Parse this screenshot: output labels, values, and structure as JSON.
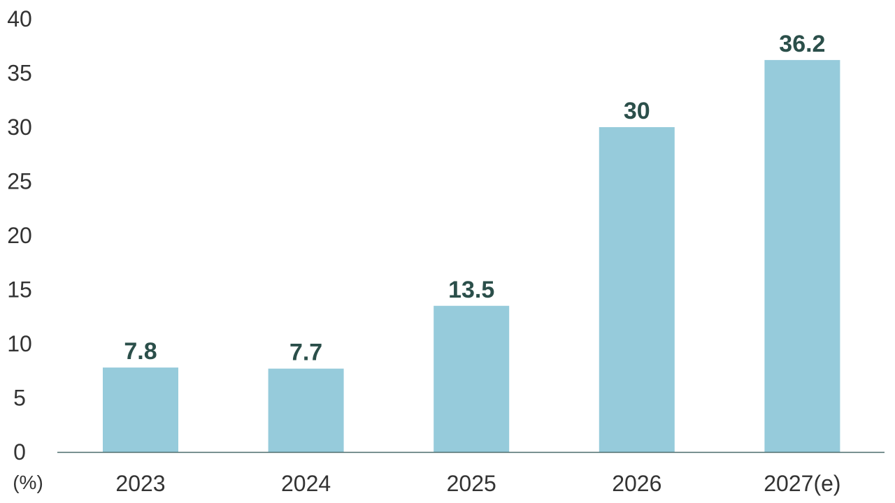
{
  "chart_data": {
    "type": "bar",
    "categories": [
      "2023",
      "2024",
      "2025",
      "2026",
      "2027(e)"
    ],
    "values": [
      7.8,
      7.7,
      13.5,
      30,
      36.2
    ],
    "data_labels": [
      "7.8",
      "7.7",
      "13.5",
      "30",
      "36.2"
    ],
    "title": "",
    "xlabel": "",
    "ylabel": "",
    "y_unit_label": "(%)",
    "ylim": [
      0,
      40
    ],
    "y_ticks": [
      0,
      5,
      10,
      15,
      20,
      25,
      30,
      35,
      40
    ],
    "grid": false,
    "legend": "none",
    "colors": {
      "bar": "#96cbdb",
      "data_label": "#2b4f4a",
      "axis": "#4a6b6b",
      "tick_text": "#333333"
    }
  }
}
